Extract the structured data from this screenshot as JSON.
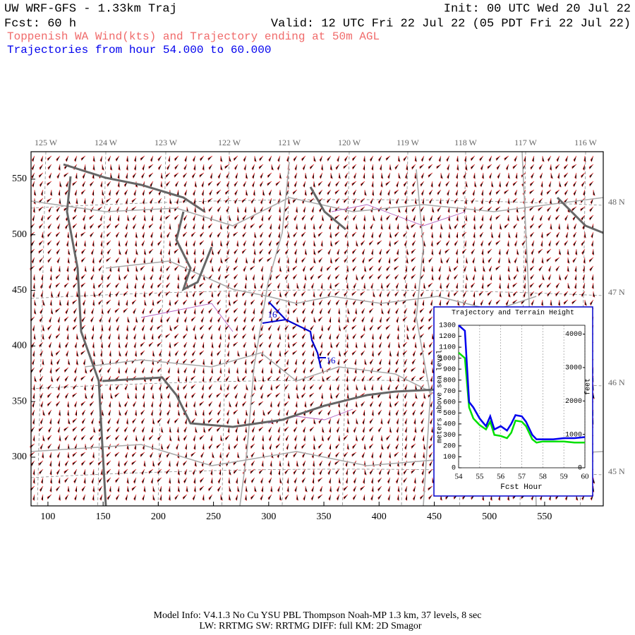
{
  "header": {
    "model": "UW WRF-GFS - 1.33km Traj",
    "fcst": "Fcst:   60 h",
    "init": "Init: 00 UTC Wed 20 Jul 22",
    "valid": "Valid: 12 UTC Fri 22 Jul 22 (05 PDT Fri 22 Jul 22)",
    "description": "Toppenish WA Wind(kts) and Trajectory ending at 50m AGL",
    "traj_range": "Trajectories from hour  54.000 to  60.000"
  },
  "map": {
    "xlim": [
      84.7,
      603.1
    ],
    "ylim": [
      256.2,
      574.7
    ],
    "xticks": [
      100,
      150,
      200,
      250,
      300,
      350,
      400,
      450,
      500,
      550
    ],
    "yticks": [
      300,
      350,
      400,
      450,
      500,
      550
    ],
    "lon_labels": [
      "125 W",
      "124 W",
      "123 W",
      "122 W",
      "121 W",
      "120 W",
      "119 W",
      "118 W",
      "117 W",
      "116 W"
    ],
    "lat_labels": [
      "48 N",
      "47 N",
      "46 N",
      "45 N"
    ],
    "trajectory": {
      "color": "#0000cc",
      "x": [
        300.1,
        315.4,
        337.8,
        339.1,
        344.2,
        347.4
      ],
      "y": [
        439.6,
        423.7,
        412.9,
        405.3,
        393.9,
        379.9
      ],
      "labels": [
        "16",
        "16"
      ]
    }
  },
  "inset_chart": {
    "type": "line",
    "title": "Trajectory and Terrain Height",
    "x_label": "Fcst Hour",
    "y_label": "meters above sea level",
    "y2_label": "feet",
    "xlim": [
      54,
      60
    ],
    "ylim": [
      0,
      1300
    ],
    "y2lim": [
      0,
      4265
    ],
    "xticks": [
      54,
      55,
      56,
      57,
      58,
      59,
      60
    ],
    "yticks": [
      0,
      100,
      200,
      300,
      400,
      500,
      600,
      700,
      800,
      900,
      1000,
      1100,
      1200,
      1300
    ],
    "y2ticks": [
      0,
      1000,
      2000,
      3000,
      4000
    ],
    "grid": true,
    "x": [
      54,
      54.3,
      54.5,
      54.7,
      55,
      55.3,
      55.5,
      55.7,
      56,
      56.3,
      56.5,
      56.7,
      57,
      57.2,
      57.5,
      57.7,
      58,
      58.5,
      59,
      59.5,
      60
    ],
    "series": [
      {
        "name": "Trajectory",
        "color": "#0000ee",
        "values": [
          1300,
          1250,
          600,
          550,
          450,
          380,
          470,
          350,
          380,
          340,
          400,
          480,
          470,
          420,
          300,
          260,
          260,
          260,
          270,
          270,
          280
        ]
      },
      {
        "name": "Terrain",
        "color": "#00e000",
        "values": [
          1050,
          1000,
          550,
          450,
          390,
          350,
          420,
          300,
          290,
          270,
          320,
          430,
          420,
          380,
          260,
          230,
          240,
          240,
          240,
          230,
          230
        ]
      }
    ]
  },
  "footer": {
    "line1": "Model Info: V4.1.3    No Cu    YSU PBL   Thompson     Noah-MP    1.3 km,  37 levels,     8 sec",
    "line2": "LW: RRTMG  SW: RRTMG     DIFF: full     KM: 2D Smagor"
  }
}
